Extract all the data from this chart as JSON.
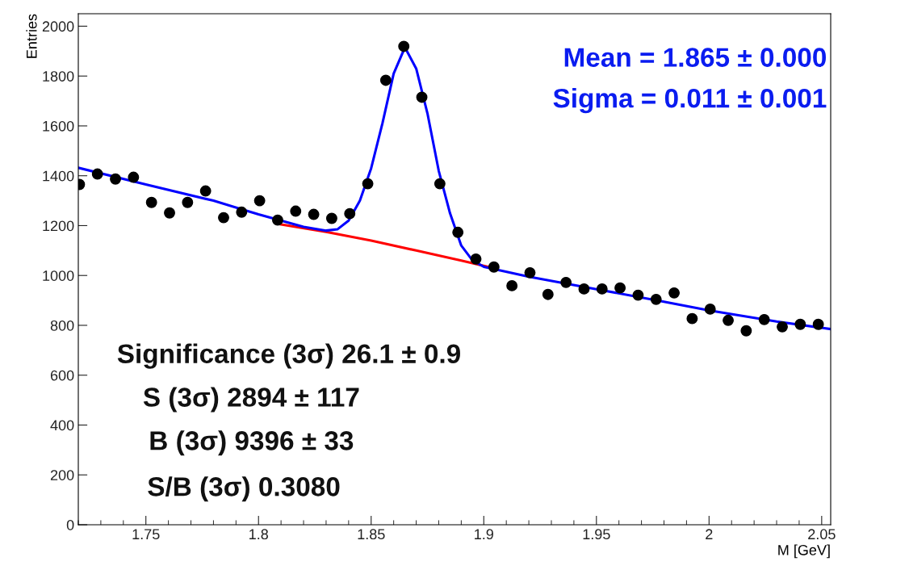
{
  "chart_data": {
    "type": "scatter",
    "xlabel": "M [GeV]",
    "ylabel": "Entries",
    "xlim": [
      1.72,
      2.054
    ],
    "ylim": [
      0,
      2050
    ],
    "xticks": [
      1.75,
      1.8,
      1.85,
      1.9,
      1.95,
      2,
      2.05
    ],
    "yticks": [
      0,
      200,
      400,
      600,
      800,
      1000,
      1200,
      1400,
      1600,
      1800,
      2000
    ],
    "grid": false,
    "legend": false,
    "marker": "circle",
    "series": [
      {
        "color": "#000000",
        "x": [
          1.7205,
          1.7285,
          1.7365,
          1.7445,
          1.7525,
          1.7605,
          1.7685,
          1.7765,
          1.7845,
          1.7925,
          1.8005,
          1.8085,
          1.8165,
          1.8245,
          1.8325,
          1.8405,
          1.8485,
          1.8565,
          1.8645,
          1.8725,
          1.8805,
          1.8885,
          1.8965,
          1.9045,
          1.9125,
          1.9205,
          1.9285,
          1.9365,
          1.9445,
          1.9525,
          1.9605,
          1.9685,
          1.9765,
          1.9845,
          1.9925,
          2.0005,
          2.0085,
          2.0165,
          2.0245,
          2.0325,
          2.0405,
          2.0485
        ],
        "values": [
          1365,
          1407,
          1387,
          1394,
          1293,
          1251,
          1293,
          1339,
          1232,
          1254,
          1300,
          1222,
          1258,
          1245,
          1229,
          1248,
          1368,
          1783,
          1919,
          1715,
          1368,
          1173,
          1066,
          1034,
          959,
          1011,
          924,
          972,
          946,
          946,
          950,
          921,
          904,
          930,
          827,
          865,
          820,
          778,
          823,
          794,
          804,
          804
        ]
      },
      {
        "type": "line",
        "color": "#ff0000",
        "marker": "none",
        "x": [
          1.81,
          1.83,
          1.85,
          1.87,
          1.89,
          1.904
        ],
        "values": [
          1205,
          1175,
          1140,
          1100,
          1060,
          1030
        ]
      },
      {
        "type": "line",
        "color": "#0000ff",
        "marker": "none",
        "x": [
          1.72,
          1.75,
          1.78,
          1.8,
          1.82,
          1.83,
          1.835,
          1.84,
          1.845,
          1.85,
          1.855,
          1.86,
          1.865,
          1.87,
          1.875,
          1.88,
          1.885,
          1.89,
          1.895,
          1.9,
          1.92,
          1.95,
          1.98,
          2.0,
          2.03,
          2.054
        ],
        "values": [
          1432,
          1365,
          1300,
          1245,
          1195,
          1180,
          1185,
          1220,
          1300,
          1430,
          1610,
          1810,
          1915,
          1830,
          1650,
          1420,
          1250,
          1120,
          1060,
          1035,
          995,
          945,
          895,
          860,
          815,
          785
        ]
      }
    ],
    "annotations": [
      "Mean = 1.865 ± 0.000",
      "Sigma = 0.011 ± 0.001",
      "Significance (3σ) 26.1 ± 0.9",
      "S (3σ) 2894 ± 117",
      "B (3σ) 9396 ± 33",
      "S/B (3σ) 0.3080"
    ]
  }
}
